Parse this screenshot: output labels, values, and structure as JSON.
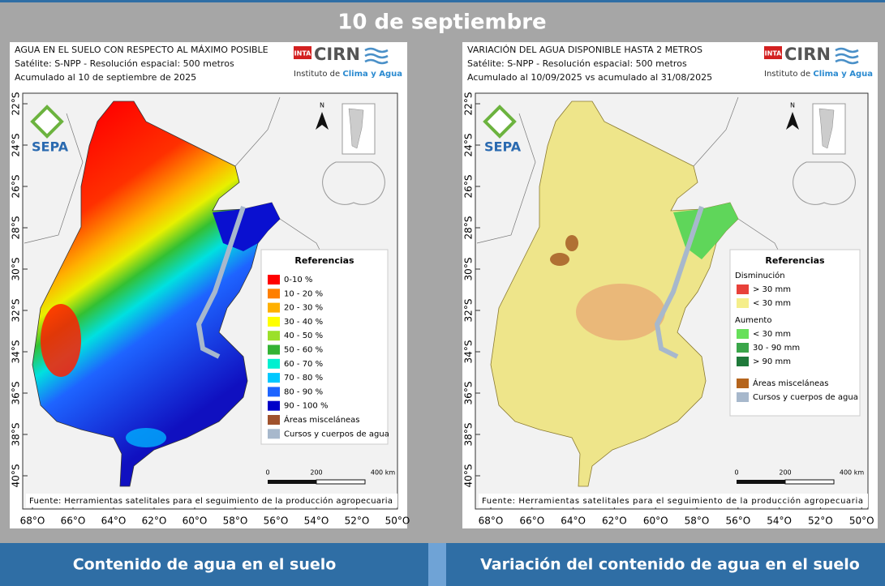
{
  "title": "10 de septiembre",
  "maps": [
    {
      "header": [
        "AGUA EN EL SUELO CON RESPECTO AL MÁXIMO POSIBLE",
        "Satélite: S-NPP - Resolución espacial: 500 metros",
        "Acumulado al 10 de septiembre de 2025"
      ],
      "logo": {
        "mark": "INTA",
        "name": "CIRN",
        "institute": "Instituto de",
        "institute_highlight": "Clima y Agua"
      },
      "sepa": "SEPA",
      "north": "N",
      "lat_labels": [
        "22°S",
        "24°S",
        "26°S",
        "28°S",
        "30°S",
        "32°S",
        "34°S",
        "36°S",
        "38°S",
        "40°S"
      ],
      "lon_labels": [
        "68°O",
        "66°O",
        "64°O",
        "62°O",
        "60°O",
        "58°O",
        "56°O",
        "54°O",
        "52°O",
        "50°O"
      ],
      "legend": {
        "title": "Referencias",
        "groups": [
          {
            "items": [
              {
                "label": "0-10 %",
                "color": "#ff0000"
              },
              {
                "label": "10 - 20 %",
                "color": "#ff7f00"
              },
              {
                "label": "20 - 30 %",
                "color": "#ffb000"
              },
              {
                "label": "30 - 40 %",
                "color": "#ffff00"
              },
              {
                "label": "40 - 50 %",
                "color": "#9be02a"
              },
              {
                "label": "50 - 60 %",
                "color": "#33b233"
              },
              {
                "label": "60 - 70 %",
                "color": "#00f0d0"
              },
              {
                "label": "70 - 80 %",
                "color": "#00c8ff"
              },
              {
                "label": "80 - 90 %",
                "color": "#1e64ff"
              },
              {
                "label": "90 - 100 %",
                "color": "#0000c8"
              },
              {
                "label": "Áreas misceláneas",
                "color": "#a0522d"
              },
              {
                "label": "Cursos y cuerpos de agua",
                "color": "#a7b8cc"
              }
            ]
          }
        ]
      },
      "scale": [
        "0",
        "200",
        "400 km"
      ],
      "source": "Fuente: Herramientas satelitales para el seguimiento de la producción agropecuaria"
    },
    {
      "header": [
        "VARIACIÓN DEL AGUA DISPONIBLE HASTA 2 METROS",
        "Satélite: S-NPP - Resolución espacial: 500 metros",
        "Acumulado al 10/09/2025 vs acumulado al 31/08/2025"
      ],
      "logo": {
        "mark": "INTA",
        "name": "CIRN",
        "institute": "Instituto de",
        "institute_highlight": "Clima y Agua"
      },
      "sepa": "SEPA",
      "north": "N",
      "lat_labels": [
        "22°S",
        "24°S",
        "26°S",
        "28°S",
        "30°S",
        "32°S",
        "34°S",
        "36°S",
        "38°S",
        "40°S"
      ],
      "lon_labels": [
        "68°O",
        "66°O",
        "64°O",
        "62°O",
        "60°O",
        "58°O",
        "56°O",
        "54°O",
        "52°O",
        "50°O"
      ],
      "legend": {
        "title": "Referencias",
        "groups": [
          {
            "heading": "Disminución",
            "items": [
              {
                "label": "> 30 mm",
                "color": "#e8413a"
              },
              {
                "label": "< 30 mm",
                "color": "#f5ee8a"
              }
            ]
          },
          {
            "heading": "Aumento",
            "items": [
              {
                "label": "< 30 mm",
                "color": "#66e05a"
              },
              {
                "label": "30 - 90 mm",
                "color": "#3aa64a"
              },
              {
                "label": "> 90 mm",
                "color": "#1f7a3a"
              }
            ]
          },
          {
            "items": [
              {
                "label": "Áreas misceláneas",
                "color": "#b5651d"
              },
              {
                "label": "Cursos y cuerpos de agua",
                "color": "#a7b8cc"
              }
            ]
          }
        ]
      },
      "scale": [
        "0",
        "200",
        "400 km"
      ],
      "source": "Fuente: Herramientas satelitales para el seguimiento de la producción agropecuaria"
    }
  ],
  "footer": [
    "Contenido de agua en el suelo",
    "Variación del contenido de agua en el suelo"
  ]
}
